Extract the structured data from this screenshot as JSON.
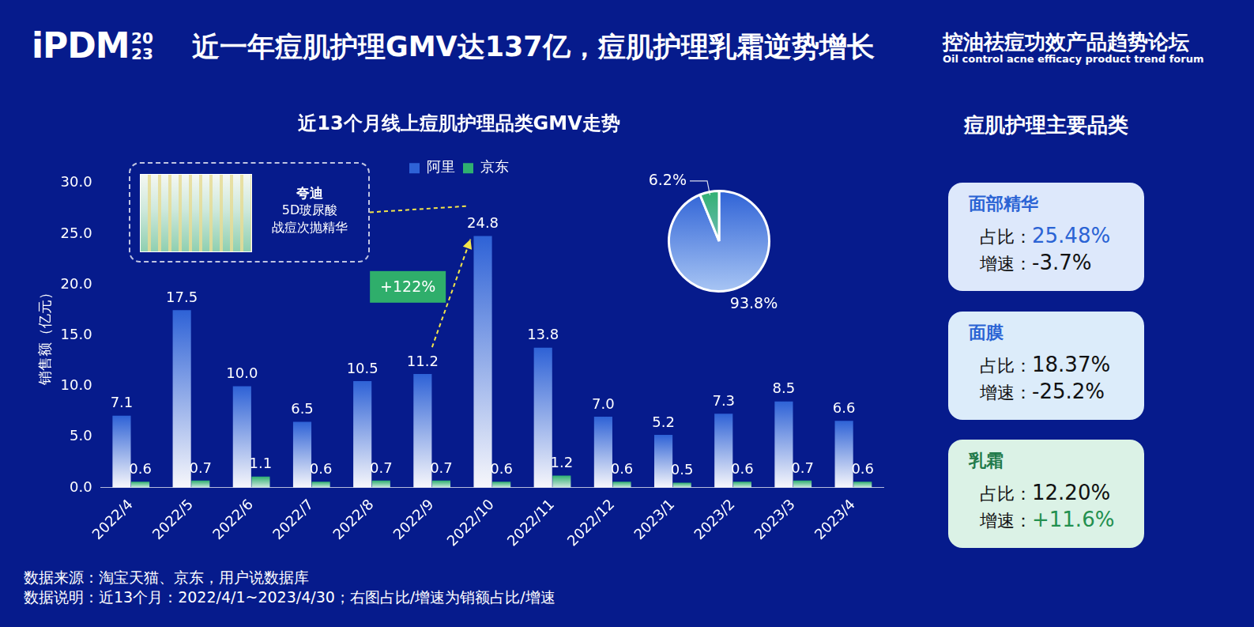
{
  "header": {
    "logo": "iPDM",
    "logo_year": [
      "20",
      "23"
    ],
    "title": "近一年痘肌护理GMV达137亿，痘肌护理乳霜逆势增长",
    "forum": "控油祛痘功效产品趋势论坛",
    "forum_en": "Oil control acne efficacy product trend forum"
  },
  "chart_data": [
    {
      "type": "bar",
      "title": "近13个月线上痘肌护理品类GMV走势",
      "categories": [
        "2022/4",
        "2022/5",
        "2022/6",
        "2022/7",
        "2022/8",
        "2022/9",
        "2022/10",
        "2022/11",
        "2022/12",
        "2023/1",
        "2023/2",
        "2023/3",
        "2023/4"
      ],
      "series": [
        {
          "name": "阿里",
          "color": "#2e62d6",
          "values": [
            7.1,
            17.5,
            10.0,
            6.5,
            10.5,
            11.2,
            24.8,
            13.8,
            7.0,
            5.2,
            7.3,
            8.5,
            6.6
          ],
          "value_labels": [
            "7.1",
            "17.5",
            "10.0",
            "6.5",
            "10.5",
            "11.2",
            "24.8",
            "13.8",
            "7.0",
            "5.2",
            "7.3",
            "8.5",
            "6.6"
          ]
        },
        {
          "name": "京东",
          "color": "#2fb070",
          "values": [
            0.6,
            0.7,
            1.1,
            0.6,
            0.7,
            0.7,
            0.6,
            1.2,
            0.6,
            0.5,
            0.6,
            0.7,
            0.6
          ],
          "value_labels": [
            "0.6",
            "0.7",
            "1.1",
            "0.6",
            "0.7",
            "0.7",
            "0.6",
            "1.2",
            "0.6",
            "0.5",
            "0.6",
            "0.7",
            "0.6"
          ]
        }
      ],
      "y_label": "销售额（亿元）",
      "ylim": [
        0,
        30
      ],
      "yticks": [
        {
          "value": 0,
          "label": "0.0"
        },
        {
          "value": 5,
          "label": "5.0"
        },
        {
          "value": 10,
          "label": "10.0"
        },
        {
          "value": 15,
          "label": "15.0"
        },
        {
          "value": 20,
          "label": "20.0"
        },
        {
          "value": 25,
          "label": "25.0"
        },
        {
          "value": 30,
          "label": "30.0"
        }
      ],
      "grid": false,
      "legend": "top",
      "data_labels": true,
      "annotations": [
        {
          "text": "+122%",
          "from": "2022/9",
          "to": "2022/10"
        }
      ],
      "callout": {
        "category": "2022/10",
        "brand": "夸迪",
        "lines": [
          "5D玻尿酸",
          "战痘次抛精华"
        ]
      }
    },
    {
      "type": "pie",
      "categories": [
        "阿里",
        "京东"
      ],
      "values": [
        93.8,
        6.2
      ],
      "value_labels": [
        "93.8%",
        "6.2%"
      ],
      "colors": [
        "#2e62d6",
        "#2fb070"
      ],
      "data_labels": true
    }
  ],
  "category_panel": {
    "title": "痘肌护理主要品类",
    "share_label": "占比：",
    "growth_label": "增速：",
    "items": [
      {
        "name": "面部精华",
        "share": "25.48%",
        "growth": "-3.7%"
      },
      {
        "name": "面膜",
        "share": "18.37%",
        "growth": "-25.2%"
      },
      {
        "name": "乳霜",
        "share": "12.20%",
        "growth": "+11.6%"
      }
    ]
  },
  "footnotes": [
    "数据来源：淘宝天猫、京东，用户说数据库",
    "数据说明：近13个月：2022/4/1~2023/4/30；右图占比/增速为销额占比/增速"
  ]
}
